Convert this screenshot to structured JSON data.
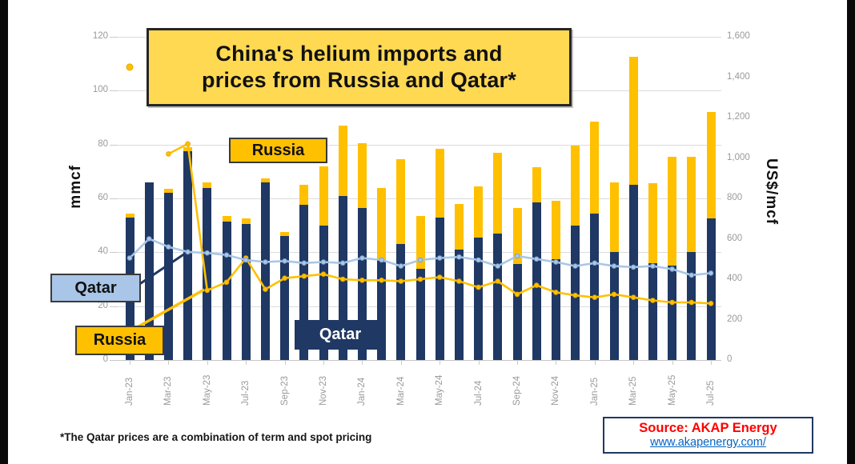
{
  "title": {
    "line1": "China's helium imports and",
    "line2": "prices from Russia and Qatar*"
  },
  "annotations": {
    "russia_bars_label": "Russia",
    "qatar_bars_label": "Qatar",
    "qatar_price_label": "Qatar",
    "russia_price_label": "Russia"
  },
  "footnote": "*The Qatar prices are a combination of term and spot pricing",
  "source": {
    "text": "Source: AKAP Energy",
    "link": "www.akapenergy.com/"
  },
  "colors": {
    "qatar_bar": "#1F3864",
    "russia_bar": "#FFC000",
    "qatar_price_line": "#A9C7E7",
    "qatar_price_marker": "#7F9FC8",
    "russia_price_line": "#FFC000",
    "title_box_bg": "#FFD952",
    "source_red": "#FF0000",
    "link_blue": "#0563C1",
    "gridline": "#dcdcdc",
    "tick_text": "#9a9a9a"
  },
  "chart_data": {
    "type": "bar",
    "subtype": "stacked-bars-with-lines",
    "title": "China's helium imports and prices from Russia and Qatar*",
    "categories": [
      "Jan-23",
      "Feb-23",
      "Mar-23",
      "Apr-23",
      "May-23",
      "Jun-23",
      "Jul-23",
      "Aug-23",
      "Sep-23",
      "Oct-23",
      "Nov-23",
      "Dec-23",
      "Jan-24",
      "Feb-24",
      "Mar-24",
      "Apr-24",
      "May-24",
      "Jun-24",
      "Jul-24",
      "Aug-24",
      "Sep-24",
      "Oct-24",
      "Nov-24",
      "Dec-24",
      "Jan-25",
      "Feb-25",
      "Mar-25",
      "Apr-25",
      "May-25",
      "Jun-25",
      "Jul-25"
    ],
    "x_axis_labeled_ticks": [
      "Jan-23",
      "Mar-23",
      "May-23",
      "Jul-23",
      "Sep-23",
      "Nov-23",
      "Jan-24",
      "Mar-24",
      "May-24",
      "Jul-24",
      "Sep-24",
      "Nov-24",
      "Jan-25",
      "Mar-25",
      "May-25",
      "Jul-25"
    ],
    "bar_series": [
      {
        "name": "Qatar imports",
        "unit": "mmcf",
        "color": "#1F3864",
        "values": [
          53,
          66,
          62,
          77.5,
          64,
          51.5,
          50.5,
          66,
          46,
          57.5,
          50,
          61,
          56.5,
          37,
          43,
          34,
          53,
          41,
          45.5,
          47,
          35.5,
          58.5,
          37.5,
          50,
          54.5,
          40,
          65,
          36,
          35,
          40,
          52.5
        ]
      },
      {
        "name": "Russia imports",
        "unit": "mmcf",
        "color": "#FFC000",
        "values": [
          1.5,
          0,
          1.5,
          1.5,
          2,
          2,
          2,
          1.5,
          1.5,
          7.5,
          22,
          26,
          24,
          27,
          31.5,
          19.5,
          25.5,
          17,
          19,
          30,
          21,
          13,
          21.5,
          29.5,
          34,
          26,
          47.5,
          29.5,
          40.5,
          35.5,
          39.5
        ]
      }
    ],
    "line_series": [
      {
        "name": "Qatar price*",
        "unit": "US$/mcf",
        "axis": "right",
        "color": "#A9C7E7",
        "values": [
          505,
          600,
          560,
          535,
          530,
          520,
          495,
          485,
          490,
          480,
          485,
          480,
          505,
          495,
          465,
          495,
          505,
          510,
          495,
          465,
          515,
          500,
          485,
          465,
          480,
          465,
          460,
          465,
          450,
          420,
          430
        ]
      },
      {
        "name": "Russia price",
        "unit": "US$/mcf",
        "axis": "right",
        "color": "#FFC000",
        "values": [
          1450,
          null,
          1020,
          1070,
          345,
          385,
          505,
          350,
          405,
          415,
          425,
          400,
          395,
          395,
          390,
          400,
          410,
          390,
          360,
          390,
          325,
          370,
          335,
          320,
          310,
          325,
          310,
          295,
          285,
          285,
          280
        ]
      }
    ],
    "left_axis": {
      "label": "mmcf",
      "min": 0,
      "max": 120,
      "step": 20,
      "tick_labels": [
        "0",
        "20",
        "40",
        "60",
        "80",
        "100",
        "120"
      ]
    },
    "right_axis": {
      "label": "US$/mcf",
      "min": 0,
      "max": 1600,
      "step": 200,
      "tick_labels": [
        "0",
        "200",
        "400",
        "600",
        "800",
        "1,000",
        "1,200",
        "1,400",
        "1,600"
      ]
    },
    "grid": true,
    "legend_position": "inline-annotation-boxes"
  }
}
